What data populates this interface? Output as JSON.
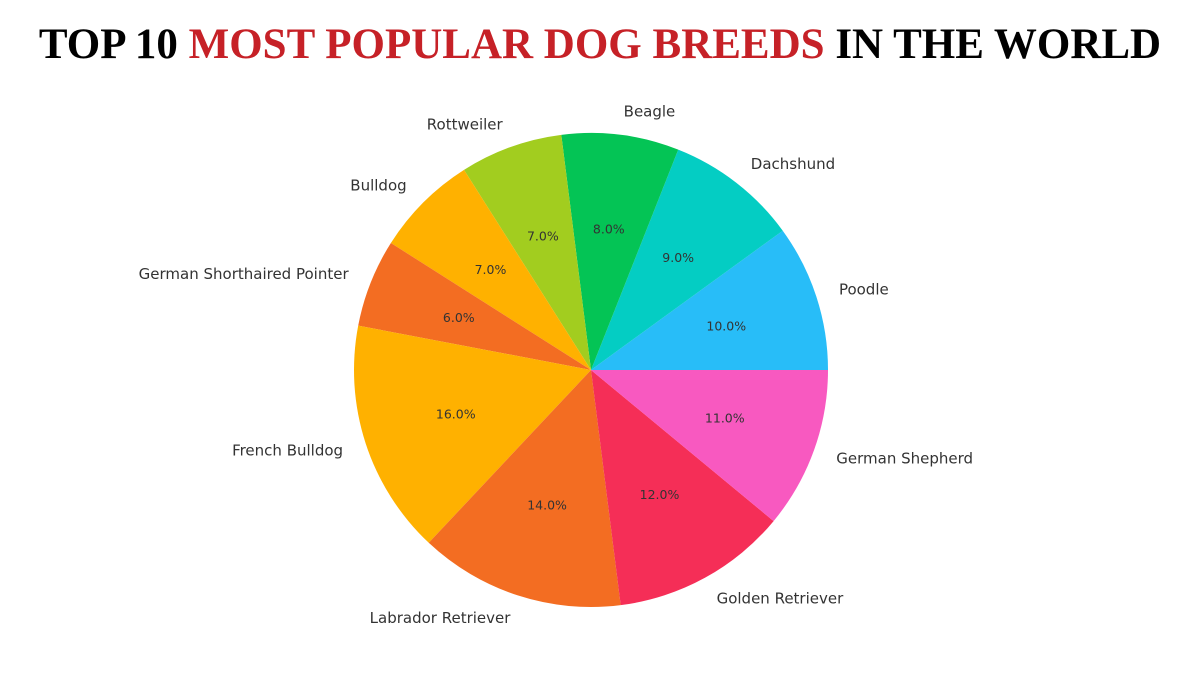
{
  "title": {
    "part1": "TOP 10 ",
    "part2": "MOST POPULAR DOG BREEDS",
    "part3": " IN THE WORLD",
    "colors": {
      "dark": "#000000",
      "accent": "#c62127"
    }
  },
  "chart_data": {
    "type": "pie",
    "title": "TOP 10 MOST POPULAR DOG BREEDS IN THE WORLD",
    "start_angle_deg": 0,
    "direction": "counterclockwise",
    "slices": [
      {
        "label": "Poodle",
        "value": 10.0,
        "pct_label": "10.0%",
        "color": "#28bdf8"
      },
      {
        "label": "Dachshund",
        "value": 9.0,
        "pct_label": "9.0%",
        "color": "#04cdc3"
      },
      {
        "label": "Beagle",
        "value": 8.0,
        "pct_label": "8.0%",
        "color": "#04c455"
      },
      {
        "label": "Rottweiler",
        "value": 7.0,
        "pct_label": "7.0%",
        "color": "#a2cd1f"
      },
      {
        "label": "Bulldog",
        "value": 7.0,
        "pct_label": "7.0%",
        "color": "#ffb100"
      },
      {
        "label": "German Shorthaired Pointer",
        "value": 6.0,
        "pct_label": "6.0%",
        "color": "#f36d22"
      },
      {
        "label": "French Bulldog",
        "value": 16.0,
        "pct_label": "16.0%",
        "color": "#ffb100"
      },
      {
        "label": "Labrador Retriever",
        "value": 14.0,
        "pct_label": "14.0%",
        "color": "#f36d22"
      },
      {
        "label": "Golden Retriever",
        "value": 12.0,
        "pct_label": "12.0%",
        "color": "#f52e57"
      },
      {
        "label": "German Shepherd",
        "value": 11.0,
        "pct_label": "11.0%",
        "color": "#f859c0"
      }
    ]
  }
}
